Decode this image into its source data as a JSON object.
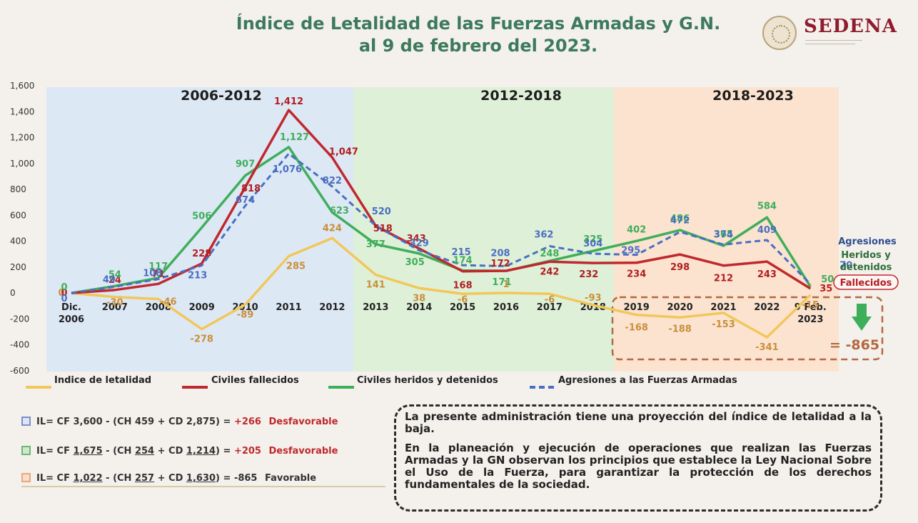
{
  "title": {
    "line1": "Índice de Letalidad de las Fuerzas Armadas y G.N.",
    "line2": "al 9 de febrero del 2023."
  },
  "logo": {
    "name": "SEDENA",
    "icon": "seal-icon"
  },
  "periods": [
    {
      "label": "2006-2012",
      "color": "#dde8f5"
    },
    {
      "label": "2012-2018",
      "color": "#dff0d8"
    },
    {
      "label": "2018-2023",
      "color": "#fbe3d0"
    }
  ],
  "chart_data": {
    "type": "line",
    "categories": [
      "Dic. 2006",
      "2007",
      "2008",
      "2009",
      "2010",
      "2011",
      "2012",
      "2013",
      "2014",
      "2015",
      "2016",
      "2017",
      "2018",
      "2019",
      "2020",
      "2021",
      "2022",
      "9 Feb. 2023"
    ],
    "ylim": [
      -600,
      1600
    ],
    "yticks": [
      "-600",
      "-400",
      "-200",
      "0",
      "200",
      "400",
      "600",
      "800",
      "1,000",
      "1,200",
      "1,400",
      "1,600"
    ],
    "series": [
      {
        "name": "Indice de letalidad",
        "color": "#f2c75a",
        "dashed": false,
        "values": [
          0,
          -30,
          -46,
          -278,
          -89,
          285,
          424,
          141,
          38,
          -6,
          1,
          -6,
          -93,
          -168,
          -188,
          -153,
          -341,
          -15
        ],
        "labels": [
          "0",
          "-30",
          "-46",
          "-278",
          "-89",
          "285",
          "424",
          "141",
          "38",
          "-6",
          "1",
          "-6",
          "-93",
          "-168",
          "-188",
          "-153",
          "-341",
          "-15"
        ]
      },
      {
        "name": "Civiles fallecidos",
        "color": "#c0282d",
        "dashed": false,
        "values": [
          0,
          24,
          71,
          228,
          818,
          1412,
          1047,
          518,
          343,
          168,
          172,
          242,
          232,
          234,
          298,
          212,
          243,
          35
        ],
        "labels": [
          "0",
          "24",
          "71",
          "228",
          "818",
          "1,412",
          "1,047",
          "518",
          "343",
          "168",
          "172",
          "242",
          "232",
          "234",
          "298",
          "212",
          "243",
          "35"
        ]
      },
      {
        "name": "Civiles heridos y detenidos",
        "color": "#3fae5a",
        "dashed": false,
        "values": [
          0,
          54,
          117,
          506,
          907,
          1127,
          623,
          377,
          305,
          174,
          171,
          248,
          325,
          402,
          486,
          365,
          584,
          50
        ],
        "labels": [
          "0",
          "54",
          "117",
          "506",
          "907",
          "1,127",
          "623",
          "377",
          "305",
          "174",
          "171",
          "248",
          "325",
          "402",
          "486",
          "365",
          "584",
          "50"
        ]
      },
      {
        "name": "Agresiones a las Fuerzas Armadas",
        "color": "#4a6fc2",
        "dashed": true,
        "values": [
          0,
          49,
          108,
          213,
          674,
          1076,
          822,
          520,
          329,
          215,
          208,
          362,
          304,
          295,
          472,
          374,
          409,
          70
        ],
        "labels": [
          "0",
          "49",
          "108",
          "213",
          "674",
          "1,076",
          "822",
          "520",
          "329",
          "215",
          "208",
          "362",
          "304",
          "295",
          "472",
          "374",
          "409",
          "70"
        ]
      }
    ],
    "series_side_labels": {
      "agresiones": "Agresiones",
      "heridos": "Heridos y detenidos",
      "fallecidos": "Fallecidos"
    },
    "total_label": "= -865"
  },
  "legend": [
    {
      "label": "Indice de letalidad",
      "color": "#f2c75a",
      "dashed": false
    },
    {
      "label": "Civiles fallecidos",
      "color": "#c0282d",
      "dashed": false
    },
    {
      "label": "Civiles heridos y detenidos",
      "color": "#3fae5a",
      "dashed": false
    },
    {
      "label": "Agresiones a las Fuerzas Armadas",
      "color": "#4a6fc2",
      "dashed": true
    }
  ],
  "formulas": [
    {
      "prefix": "IL= CF ",
      "cf": "3,600",
      "mid1": " - (CH ",
      "ch": "459",
      "mid2": " + CD ",
      "cd": "2,875",
      "mid3": ") = ",
      "result": "+266",
      "verdict": "Desfavorable",
      "color": "#c0282d",
      "underline": false
    },
    {
      "prefix": "IL= CF ",
      "cf": "1,675",
      "mid1": " - (CH ",
      "ch": "254",
      "mid2": " + CD ",
      "cd": "1,214",
      "mid3": ") = ",
      "result": "+205",
      "verdict": "Desfavorable",
      "color": "#c0282d",
      "underline": true
    },
    {
      "prefix": "IL= CF ",
      "cf": "1,022",
      "mid1": " - (CH ",
      "ch": "257",
      "mid2": " + CD ",
      "cd": "1,630",
      "mid3": ") = ",
      "result": "-865",
      "verdict": "Favorable",
      "color": "#333333",
      "underline": true
    }
  ],
  "note": {
    "p1": "La presente administración tiene una proyección del índice de letalidad a la baja.",
    "p2": "En la planeación y ejecución de operaciones que realizan las Fuerzas Armadas y la GN observan los principios que establece la Ley Nacional Sobre el Uso de la Fuerza, para garantizar la protección de los derechos fundamentales de la sociedad."
  }
}
